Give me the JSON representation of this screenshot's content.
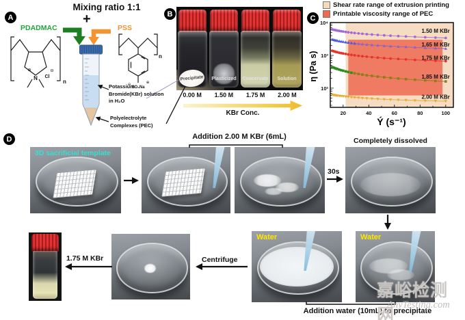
{
  "panel_a": {
    "badge": "A",
    "title": "Mixing ratio 1:1",
    "plus": "+",
    "pdadmac": "PDADMAC",
    "pdadmac_color": "#1fa53c",
    "pss": "PSS",
    "pss_color": "#f59331",
    "nitrogen": "N",
    "chloride": "Cl",
    "plus_charge": "⊕",
    "minus_charge": "⊖",
    "n_sub": "n",
    "so3na": "SO₃Na",
    "kbr_solution_label": "Potassium\nBromide(KBr) solution\nin H₂O",
    "pec_label": "Polyelectrolyte\nComplexes (PEC)"
  },
  "panel_b": {
    "badge": "B",
    "vials": [
      {
        "state": "Precipitate",
        "conc": "0.00 M"
      },
      {
        "state": "Plasticized",
        "conc": "1.50 M"
      },
      {
        "state": "Coacervate",
        "conc": "1.75 M"
      },
      {
        "state": "Solution",
        "conc": "2.00 M"
      }
    ],
    "axis_label": "KBr Conc.",
    "cap_color": "#d42b2b"
  },
  "panel_c": {
    "badge": "C"
  },
  "chart_data": {
    "type": "line",
    "xlabel": "Ý (s⁻¹)",
    "ylabel": "η (Pa s)",
    "xlim": [
      10,
      106
    ],
    "ylim_log": [
      26,
      10000
    ],
    "xticks": [
      20,
      40,
      60,
      80,
      100
    ],
    "yticks": [
      {
        "v": 100,
        "label": "10²"
      },
      {
        "v": 1000,
        "label": "10³"
      },
      {
        "v": 10000,
        "label": "10⁴"
      }
    ],
    "legend": [
      {
        "label": "Shear rate range of extrusion printing",
        "color": "#f6d9b8"
      },
      {
        "label": "Printable viscosity range of PEC",
        "color": "#ee6a50"
      }
    ],
    "regions": [
      {
        "name": "shear-rate-range",
        "x": [
          22,
          106
        ],
        "y": [
          26,
          10000
        ],
        "color": "#f6dcc2"
      },
      {
        "name": "printable-viscosity-range",
        "x": [
          24,
          97.5
        ],
        "y": [
          60,
          3000
        ],
        "color": "#ef7b62"
      }
    ],
    "x": [
      11.5,
      12.5,
      13.5,
      14.5,
      15.5,
      17,
      18.5,
      20,
      22,
      24,
      26.5,
      29,
      32,
      35,
      38.5,
      42.5,
      47,
      52,
      57,
      63,
      69,
      76,
      84,
      92,
      100
    ],
    "series": [
      {
        "name": "1.50 M KBr",
        "color": "#a46ad4",
        "head_color": "#a46ad4",
        "head_until": 0,
        "marker": "circle",
        "label_eta": 5600,
        "values": [
          6200,
          6050,
          5920,
          5800,
          5700,
          5560,
          5430,
          5320,
          5180,
          5050,
          4920,
          4790,
          4670,
          4550,
          4430,
          4310,
          4190,
          4080,
          3970,
          3860,
          3770,
          3670,
          3570,
          3480,
          3400
        ]
      },
      {
        "name": "1.65 M KBr",
        "color": "#8a63c8",
        "head_color": "#4a5ae0",
        "head_until": 30,
        "marker": "triangle",
        "label_eta": 2150,
        "values": [
          3050,
          2975,
          2905,
          2845,
          2790,
          2715,
          2650,
          2590,
          2515,
          2450,
          2380,
          2315,
          2250,
          2190,
          2130,
          2070,
          2010,
          1955,
          1905,
          1850,
          1800,
          1750,
          1700,
          1655,
          1615
        ]
      },
      {
        "name": "1.75 M KBr",
        "color": "#e8332a",
        "head_color": "#e8332a",
        "head_until": 0,
        "marker": "circle",
        "label_eta": 850,
        "values": [
          1380,
          1340,
          1305,
          1272,
          1243,
          1205,
          1170,
          1140,
          1103,
          1070,
          1035,
          1003,
          970,
          940,
          910,
          880,
          852,
          825,
          800,
          775,
          752,
          728,
          705,
          685,
          668
        ]
      },
      {
        "name": "1.85 M KBr",
        "color": "#8f7d17",
        "head_color": "#2e8b1e",
        "head_until": 28,
        "marker": "square",
        "label_eta": 225,
        "values": [
          440,
          424,
          409,
          396,
          384,
          368,
          353,
          340,
          325,
          311,
          297,
          284,
          271,
          259,
          247,
          236,
          225,
          215,
          206,
          197,
          189,
          181,
          173,
          166,
          160
        ]
      },
      {
        "name": "2.00 M KBr",
        "color": "#e5ad33",
        "head_color": "#e5ad33",
        "head_until": 0,
        "marker": "triangle-down",
        "label_eta": 55,
        "values": [
          63,
          62,
          61,
          60,
          59,
          58.2,
          57.3,
          56.5,
          55.4,
          54.4,
          53.2,
          52.2,
          51,
          50,
          48.9,
          47.8,
          46.7,
          45.7,
          44.8,
          43.9,
          43,
          42.1,
          41.3,
          40.6,
          40
        ]
      }
    ]
  },
  "panel_d": {
    "badge": "D",
    "template_label": "3D sacrificial template",
    "addition_kbr_label": "Addition 2.00 M KBr (6mL)",
    "time_label": "30s",
    "dissolved_label": "Completely dissolved",
    "water_label": "Water",
    "addition_water_label": "Addition water (10mL) to precipitate",
    "centrifuge_label": "Centrifuge",
    "kbr_result_label": "1.75 M KBr"
  },
  "watermark": {
    "cn": "嘉峪检测网",
    "en": "AnyTesting.com"
  }
}
